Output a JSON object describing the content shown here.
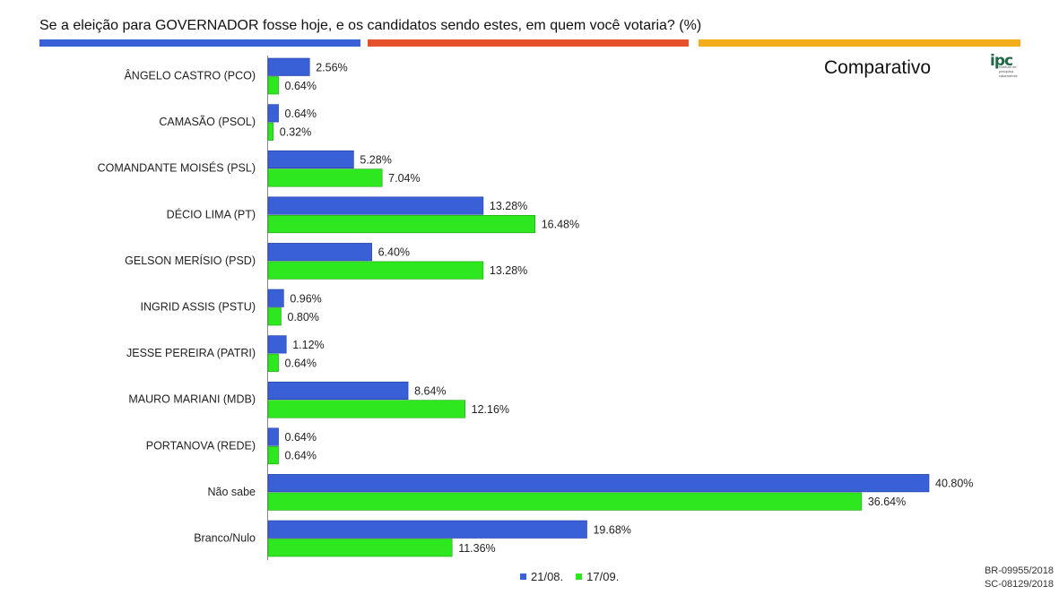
{
  "header": {
    "title": "Se a eleição para GOVERNADOR fosse hoje, e os candidatos sendo estes, em quem você votaria? (%)",
    "subtitle": "Comparativo"
  },
  "logo": {
    "mark": "ipc",
    "tagline": "Instituto de pesquisa catarinense"
  },
  "colors": {
    "series1": "#3a60d8",
    "series2": "#2ee81f",
    "stripe_blue": "#3a60d8",
    "stripe_red": "#e6502a",
    "stripe_orange": "#f4ad1c"
  },
  "chart_data": {
    "type": "bar",
    "orientation": "horizontal",
    "categories": [
      "ÂNGELO CASTRO (PCO)",
      "CAMASÃO (PSOL)",
      "COMANDANTE MOISÉS (PSL)",
      "DÉCIO LIMA (PT)",
      "GELSON MERÍSIO (PSD)",
      "INGRID ASSIS (PSTU)",
      "JESSE PEREIRA (PATRI)",
      "MAURO MARIANI (MDB)",
      "PORTANOVA (REDE)",
      "Não sabe",
      "Branco/Nulo"
    ],
    "series": [
      {
        "name": "21/08.",
        "values": [
          2.56,
          0.64,
          5.28,
          13.28,
          6.4,
          0.96,
          1.12,
          8.64,
          0.64,
          40.8,
          19.68
        ],
        "labels": [
          "2.56%",
          "0.64%",
          "5.28%",
          "13.28%",
          "6.40%",
          "0.96%",
          "1.12%",
          "8.64%",
          "0.64%",
          "40.80%",
          "19.68%"
        ]
      },
      {
        "name": "17/09.",
        "values": [
          0.64,
          0.32,
          7.04,
          16.48,
          13.28,
          0.8,
          0.64,
          12.16,
          0.64,
          36.64,
          11.36
        ],
        "labels": [
          "0.64%",
          "0.32%",
          "7.04%",
          "16.48%",
          "13.28%",
          "0.80%",
          "0.64%",
          "12.16%",
          "0.64%",
          "36.64%",
          "11.36%"
        ]
      }
    ],
    "xlim": [
      0,
      40.8
    ],
    "grid": false,
    "legend_position": "bottom"
  },
  "footer": {
    "codes": [
      "BR-09955/2018",
      "SC-08129/2018"
    ]
  }
}
